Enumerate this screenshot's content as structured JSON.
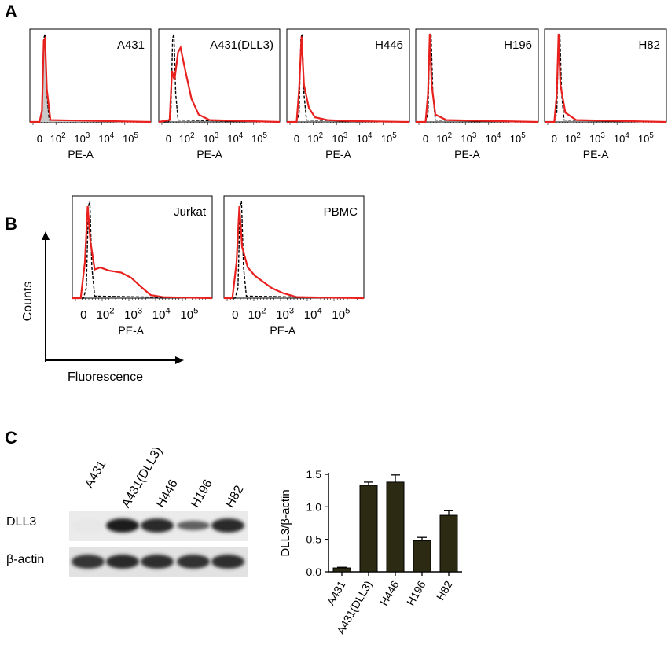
{
  "panel_labels": {
    "a": "A",
    "b": "B",
    "c": "C"
  },
  "flow": {
    "x_label": "PE-A",
    "ticks": [
      "0",
      "10",
      "10",
      "10",
      "10"
    ],
    "tick_exps": [
      "",
      "2",
      "3",
      "4",
      "5"
    ],
    "row_a": [
      "A431",
      "A431(DLL3)",
      "H446",
      "H196",
      "H82"
    ],
    "row_b": [
      "Jurkat",
      "PBMC"
    ],
    "y_axis_label": "Counts",
    "x_axis_label": "Fluorescence",
    "colors": {
      "sample": "#e8211f",
      "control": "#000000",
      "control_fill": "#c8c8c8"
    }
  },
  "blot": {
    "lanes": [
      "A431",
      "A431(DLL3)",
      "H446",
      "H196",
      "H82"
    ],
    "rows": [
      "DLL3",
      "β-actin"
    ],
    "dll3_intensity": [
      0.02,
      0.95,
      0.9,
      0.65,
      0.9
    ],
    "actin_intensity": [
      0.85,
      0.9,
      0.88,
      0.86,
      0.88
    ]
  },
  "chart_data": {
    "type": "bar",
    "categories": [
      "A431",
      "A431(DLL3)",
      "H446",
      "H196",
      "H82"
    ],
    "values": [
      0.06,
      1.33,
      1.38,
      0.48,
      0.87
    ],
    "errors": [
      0.01,
      0.05,
      0.11,
      0.05,
      0.07
    ],
    "ylabel": "DLL3/β-actin",
    "ylim": [
      0,
      1.5
    ],
    "yticks": [
      "0.0",
      "0.5",
      "1.0",
      "1.5"
    ],
    "bar_color": "#2d2a14"
  }
}
